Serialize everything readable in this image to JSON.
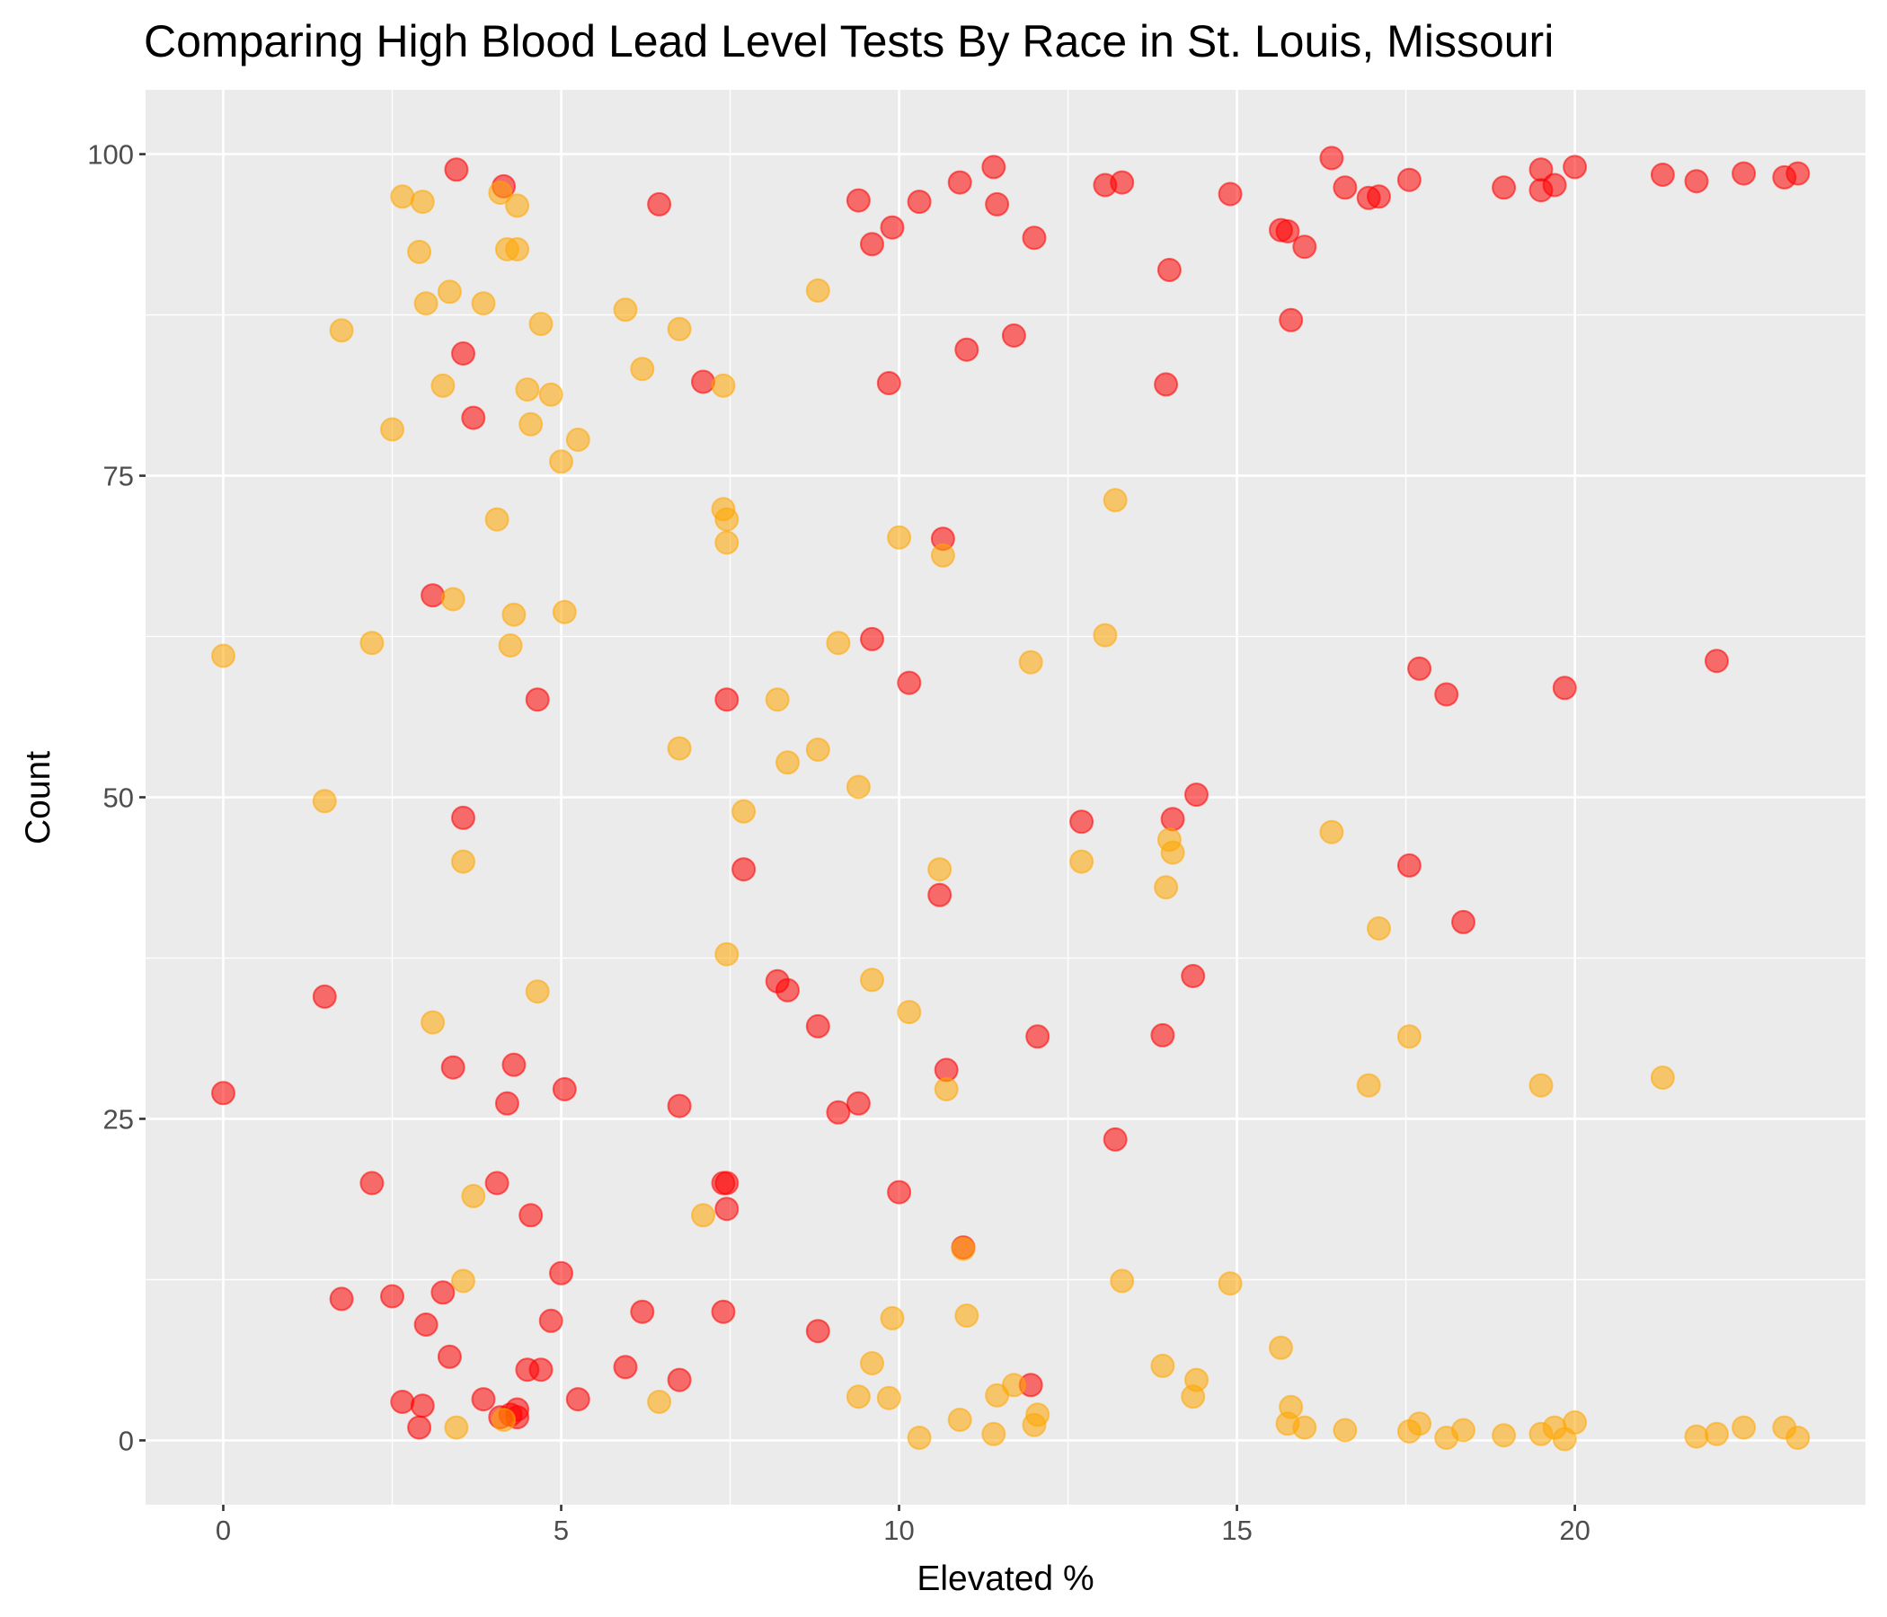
{
  "chart_data": {
    "type": "scatter",
    "title": "Comparing High Blood Lead Level Tests By Race in St. Louis, Missouri",
    "xlabel": "Elevated %",
    "ylabel": "Count",
    "xlim": [
      -1.15,
      24.3
    ],
    "ylim": [
      -5,
      105
    ],
    "x_ticks": [
      0,
      5,
      10,
      15,
      20
    ],
    "x_tick_labels": [
      "0",
      "5",
      "10",
      "15",
      "20"
    ],
    "y_ticks": [
      0,
      25,
      50,
      75,
      100
    ],
    "y_tick_labels": [
      "0",
      "25",
      "50",
      "75",
      "100"
    ],
    "grid": true,
    "legend": "none",
    "panel_background": "#ebebeb",
    "grid_color": "#ffffff",
    "series": [
      {
        "color": "#ff0000",
        "x": [
          0.0,
          1.5,
          1.75,
          2.2,
          2.5,
          2.65,
          2.9,
          2.95,
          3.0,
          3.1,
          3.25,
          3.35,
          3.4,
          3.45,
          3.55,
          3.55,
          3.7,
          3.85,
          4.05,
          4.1,
          4.15,
          4.2,
          4.25,
          4.3,
          4.35,
          4.35,
          4.5,
          4.55,
          4.65,
          4.7,
          4.85,
          5.0,
          5.05,
          5.25,
          5.95,
          6.2,
          6.45,
          6.75,
          6.75,
          7.1,
          7.4,
          7.4,
          7.45,
          7.45,
          7.45,
          7.7,
          8.2,
          8.35,
          8.8,
          8.8,
          9.1,
          9.4,
          9.4,
          9.6,
          9.6,
          9.85,
          9.9,
          10.0,
          10.15,
          10.3,
          10.6,
          10.65,
          10.7,
          10.9,
          10.95,
          11.0,
          11.4,
          11.45,
          11.7,
          11.95,
          12.0,
          12.05,
          12.7,
          13.05,
          13.2,
          13.3,
          13.9,
          13.95,
          14.0,
          14.05,
          14.35,
          14.4,
          14.9,
          15.65,
          15.75,
          15.8,
          16.0,
          16.4,
          16.6,
          16.95,
          17.1,
          17.55,
          17.55,
          17.7,
          18.1,
          18.35,
          18.95,
          19.5,
          19.5,
          19.7,
          19.85,
          20.0,
          21.3,
          21.8,
          22.1,
          22.5,
          23.1,
          23.3
        ],
        "y": [
          27,
          34.5,
          11,
          20,
          11.2,
          3,
          1,
          2.7,
          9,
          65.7,
          11.5,
          6.5,
          29,
          98.8,
          84.5,
          48.4,
          79.5,
          3.2,
          20,
          1.8,
          97.5,
          26.2,
          2,
          29.2,
          2.4,
          1.8,
          5.5,
          17.5,
          57.6,
          5.5,
          9.3,
          13,
          27.3,
          3.2,
          5.7,
          10,
          96.1,
          4.7,
          26,
          82.3,
          20,
          10,
          18,
          57.6,
          20,
          44.4,
          35.7,
          35,
          32.2,
          8.5,
          25.5,
          26.2,
          96.4,
          93,
          62.3,
          82.2,
          94.3,
          19.3,
          58.9,
          96.3,
          42.4,
          70.1,
          28.8,
          97.8,
          15,
          84.8,
          99,
          96.1,
          85.9,
          4.3,
          93.5,
          31.4,
          48.1,
          97.6,
          23.4,
          97.8,
          31.5,
          82.1,
          91,
          48.3,
          36.1,
          50.2,
          96.9,
          94.1,
          94,
          87.1,
          92.8,
          99.7,
          97.4,
          96.6,
          96.7,
          44.7,
          98,
          60,
          58,
          40.3,
          97.4,
          98.8,
          97.2,
          97.6,
          58.5,
          99,
          98.4,
          97.9,
          60.6,
          98.5,
          98.2,
          98.5
        ]
      },
      {
        "color": "#ffa500",
        "x": [
          0.0,
          1.5,
          1.75,
          2.2,
          2.5,
          2.65,
          2.9,
          2.95,
          3.0,
          3.1,
          3.25,
          3.35,
          3.4,
          3.45,
          3.55,
          3.55,
          3.7,
          3.85,
          4.05,
          4.1,
          4.15,
          4.2,
          4.25,
          4.3,
          4.35,
          4.35,
          4.5,
          4.55,
          4.65,
          4.7,
          4.85,
          5.0,
          5.05,
          5.25,
          5.95,
          6.2,
          6.45,
          6.75,
          6.75,
          7.1,
          7.4,
          7.4,
          7.45,
          7.45,
          7.45,
          7.7,
          8.2,
          8.35,
          8.8,
          8.8,
          9.1,
          9.4,
          9.4,
          9.6,
          9.6,
          9.85,
          9.9,
          10.0,
          10.15,
          10.3,
          10.6,
          10.65,
          10.7,
          10.9,
          10.95,
          11.0,
          11.4,
          11.45,
          11.7,
          11.95,
          12.0,
          12.05,
          12.7,
          13.05,
          13.2,
          13.3,
          13.9,
          13.95,
          14.0,
          14.05,
          14.35,
          14.4,
          14.9,
          15.65,
          15.75,
          15.8,
          16.0,
          16.4,
          16.6,
          16.95,
          17.1,
          17.55,
          17.55,
          17.7,
          18.1,
          18.35,
          18.95,
          19.5,
          19.5,
          19.7,
          19.85,
          20.0,
          21.3,
          21.8,
          22.1,
          22.5,
          23.1,
          23.3
        ],
        "y": [
          61,
          49.7,
          86.3,
          62,
          78.6,
          96.7,
          92.4,
          96.3,
          88.4,
          32.5,
          82,
          89.3,
          65.4,
          1,
          12.4,
          45,
          19,
          88.4,
          71.6,
          97,
          1.6,
          92.6,
          61.8,
          64.2,
          96,
          92.6,
          81.7,
          79,
          34.9,
          86.8,
          81.3,
          76.1,
          64.4,
          77.8,
          87.9,
          83.3,
          3,
          86.4,
          53.8,
          17.5,
          82,
          72.4,
          37.8,
          71.6,
          69.8,
          48.9,
          57.6,
          52.7,
          53.7,
          89.4,
          62,
          3.4,
          50.8,
          6,
          35.8,
          3.3,
          9.5,
          70.2,
          33.3,
          0.2,
          44.4,
          68.8,
          27.3,
          1.6,
          14.9,
          9.7,
          0.5,
          3.5,
          4.3,
          60.5,
          1.2,
          2,
          45,
          62.6,
          73.1,
          12.4,
          5.8,
          43,
          46.7,
          45.7,
          3.4,
          4.7,
          12.2,
          7.2,
          1.3,
          2.6,
          1,
          47.3,
          0.8,
          27.6,
          39.8,
          0.7,
          31.4,
          1.3,
          0.2,
          0.8,
          0.4,
          0.5,
          27.6,
          1.0,
          0.1,
          1.4,
          28.2,
          0.3,
          0.5,
          1.0,
          1.0,
          0.2
        ]
      }
    ]
  }
}
